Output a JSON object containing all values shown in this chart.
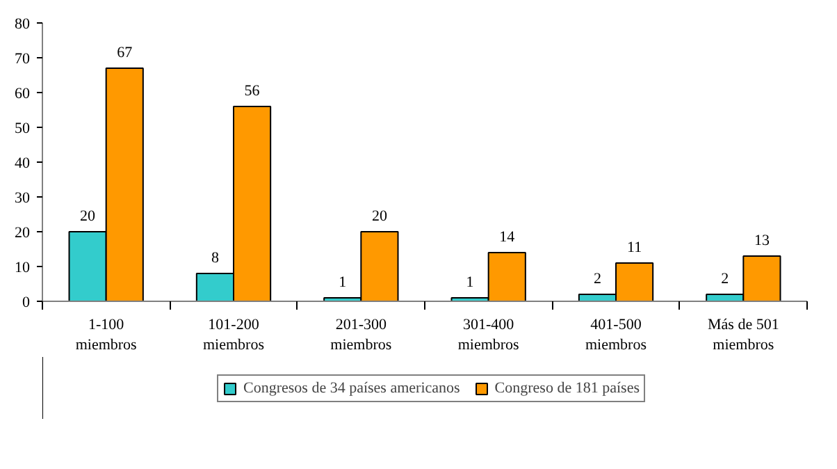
{
  "chart_data": {
    "type": "bar",
    "categories": [
      "1-100\nmiembros",
      "101-200\nmiembros",
      "201-300\nmiembros",
      "301-400\nmiembros",
      "401-500\nmiembros",
      "Más de 501\nmiembros"
    ],
    "series": [
      {
        "name": "Congresos de 34 países americanos",
        "color": "#33cccc",
        "values": [
          20,
          8,
          1,
          1,
          2,
          2
        ]
      },
      {
        "name": "Congreso de 181 países",
        "color": "#ff9900",
        "values": [
          67,
          56,
          20,
          14,
          11,
          13
        ]
      }
    ],
    "ylim": [
      0,
      80
    ],
    "yticks": [
      0,
      10,
      20,
      30,
      40,
      50,
      60,
      70,
      80
    ],
    "data_labels": true,
    "legend": "bottom",
    "grid": false
  }
}
